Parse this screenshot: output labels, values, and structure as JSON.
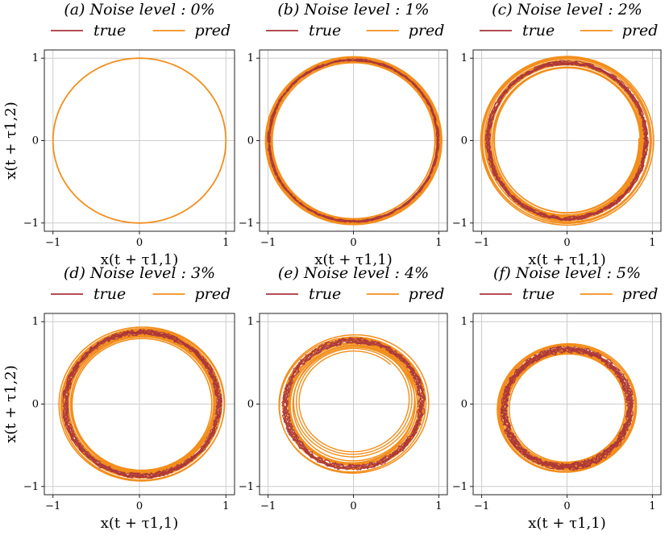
{
  "chart_data": [
    {
      "type": "line",
      "title": "(a) Noise level : 0%",
      "noise_level": 0,
      "xlabel": "x(t + τ1,1)",
      "ylabel": "x(t + τ1,2)",
      "xlim": [
        -1.1,
        1.1
      ],
      "ylim": [
        -1.1,
        1.1
      ],
      "xticks": [
        -1,
        0,
        1
      ],
      "yticks": [
        -1,
        0,
        1
      ],
      "grid": true,
      "legend": "top-center",
      "series": [
        {
          "name": "true",
          "color": "#a8333c",
          "shape": "circle",
          "center": [
            0,
            0
          ],
          "rx": 1.0,
          "ry": 1.0
        },
        {
          "name": "pred",
          "color": "#f28e1c",
          "shape": "circle",
          "center": [
            0,
            0
          ],
          "rx": 1.0,
          "ry": 1.0
        }
      ]
    },
    {
      "type": "line",
      "title": "(b) Noise level : 1%",
      "noise_level": 1,
      "xlabel": "x(t + τ1,1)",
      "ylabel": "",
      "xlim": [
        -1.1,
        1.1
      ],
      "ylim": [
        -1.1,
        1.1
      ],
      "xticks": [
        -1,
        0,
        1
      ],
      "yticks": [
        -1,
        0,
        1
      ],
      "grid": true,
      "legend": "top-center",
      "series": [
        {
          "name": "true",
          "color": "#a8333c",
          "shape": "noisy loop",
          "center": [
            0,
            0
          ],
          "rx": 0.99,
          "ry": 0.98
        },
        {
          "name": "pred",
          "color": "#f28e1c",
          "shape": "loop band",
          "center": [
            0,
            0
          ],
          "rx": 0.99,
          "ry": 0.98
        }
      ]
    },
    {
      "type": "line",
      "title": "(c) Noise level : 2%",
      "noise_level": 2,
      "xlabel": "x(t + τ1,1)",
      "ylabel": "",
      "xlim": [
        -1.1,
        1.1
      ],
      "ylim": [
        -1.1,
        1.1
      ],
      "xticks": [
        -1,
        0,
        1
      ],
      "yticks": [
        -1,
        0,
        1
      ],
      "grid": true,
      "legend": "top-center",
      "series": [
        {
          "name": "true",
          "color": "#a8333c",
          "shape": "noisy loop",
          "center": [
            0,
            0
          ],
          "rx": 0.93,
          "ry": 0.95
        },
        {
          "name": "pred",
          "color": "#f28e1c",
          "shape": "loop band",
          "center": [
            0,
            0
          ],
          "rx": 0.93,
          "ry": 0.95
        }
      ]
    },
    {
      "type": "line",
      "title": "(d) Noise level : 3%",
      "noise_level": 3,
      "xlabel": "x(t + τ1,1)",
      "ylabel": "x(t + τ1,2)",
      "xlim": [
        -1.1,
        1.1
      ],
      "ylim": [
        -1.1,
        1.1
      ],
      "xticks": [
        -1,
        0,
        1
      ],
      "yticks": [
        -1,
        0,
        1
      ],
      "grid": true,
      "legend": "top-center",
      "series": [
        {
          "name": "true",
          "color": "#a8333c",
          "shape": "noisy tilted loop",
          "center": [
            0.03,
            0.0
          ],
          "rx": 0.94,
          "ry": 0.92
        },
        {
          "name": "pred",
          "color": "#f28e1c",
          "shape": "tilted loop band",
          "center": [
            0.03,
            0.0
          ],
          "rx": 0.94,
          "ry": 0.92
        }
      ]
    },
    {
      "type": "line",
      "title": "(e) Noise level : 4%",
      "noise_level": 4,
      "xlabel": "",
      "ylabel": "",
      "xlim": [
        -1.1,
        1.1
      ],
      "ylim": [
        -1.1,
        1.1
      ],
      "xticks": [
        -1,
        0,
        1
      ],
      "yticks": [
        -1,
        0,
        1
      ],
      "grid": true,
      "legend": "top-center",
      "series": [
        {
          "name": "true",
          "color": "#a8333c",
          "shape": "noisy tilted loop",
          "center": [
            0.0,
            0.0
          ],
          "rx": 0.92,
          "ry": 0.88
        },
        {
          "name": "pred",
          "color": "#f28e1c",
          "shape": "tilted loop band with inner spirals",
          "center": [
            0.0,
            0.0
          ],
          "rx": 0.92,
          "ry": 0.88
        }
      ]
    },
    {
      "type": "line",
      "title": "(f) Noise level : 5%",
      "noise_level": 5,
      "xlabel": "x(t + τ1,1)",
      "ylabel": "",
      "xlim": [
        -1.1,
        1.1
      ],
      "ylim": [
        -1.1,
        1.1
      ],
      "xticks": [
        -1,
        0,
        1
      ],
      "yticks": [
        -1,
        0,
        1
      ],
      "grid": true,
      "legend": "top-center",
      "series": [
        {
          "name": "true",
          "color": "#a8333c",
          "shape": "noisy tilted loop",
          "center": [
            0.0,
            -0.05
          ],
          "rx": 0.9,
          "ry": 0.86
        },
        {
          "name": "pred",
          "color": "#f28e1c",
          "shape": "tilted loop band",
          "center": [
            0.0,
            -0.05
          ],
          "rx": 0.9,
          "ry": 0.86
        }
      ]
    }
  ]
}
